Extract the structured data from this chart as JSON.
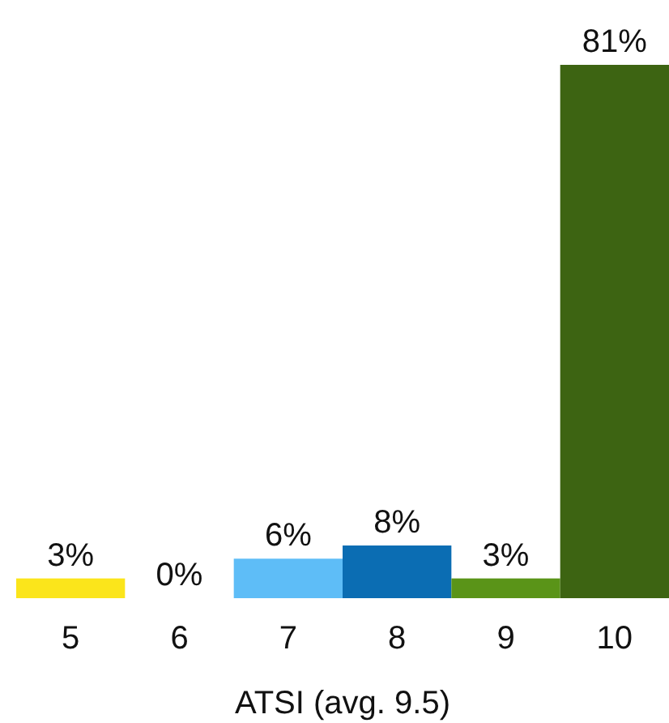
{
  "chart_data": {
    "type": "bar",
    "xlabel": "ATSI (avg. 9.5)",
    "categories": [
      "5",
      "6",
      "7",
      "8",
      "9",
      "10"
    ],
    "values": [
      3,
      0,
      6,
      8,
      3,
      81
    ],
    "value_labels": [
      "3%",
      "0%",
      "6%",
      "8%",
      "3%",
      "81%"
    ],
    "colors": [
      "#fbe51b",
      "#9fd3f5",
      "#5ebdf7",
      "#0b6db3",
      "#5a9418",
      "#3d6412"
    ]
  }
}
